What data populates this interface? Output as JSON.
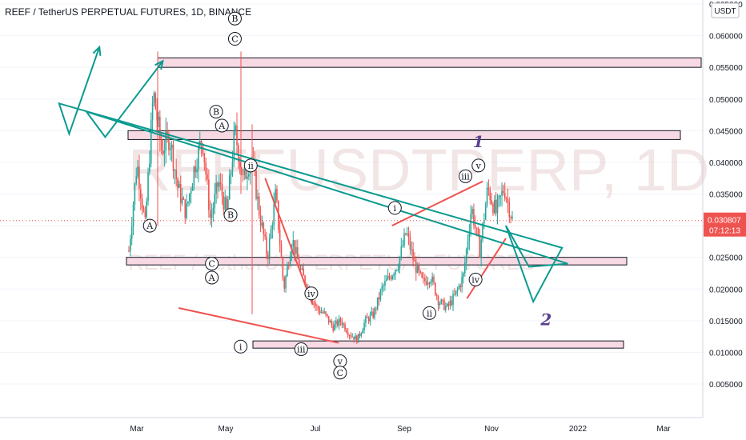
{
  "title": "REEF / TetherUS PERPETUAL FUTURES, 1D, BINANCE",
  "watermark": {
    "big": "REEFUSDTPERP, 1D",
    "small": "REEF / TetherUS PERPETUAL FUTURES"
  },
  "colors": {
    "up": "#26a69a",
    "down": "#ef5350",
    "zone_fill": "#f7d9e3",
    "wave_red": "#ef5350",
    "projection": "#0b9a8f",
    "degree_label": "#5b3f8e",
    "price_badge": "#ef5350"
  },
  "chart_data": {
    "type": "candlestick",
    "currency": "USDT",
    "y_ticks": [
      "0.065000",
      "0.060000",
      "0.055000",
      "0.050000",
      "0.045000",
      "0.040000",
      "0.035000",
      "0.030000",
      "0.025000",
      "0.020000",
      "0.015000",
      "0.010000",
      "0.005000"
    ],
    "ylim": [
      0.0,
      0.065
    ],
    "x_ticks": [
      "Mar",
      "May",
      "Jul",
      "Sep",
      "Nov",
      "2022",
      "Mar"
    ],
    "last_price": "0.030807",
    "countdown": "07:12:13",
    "zones": [
      {
        "from": "late Feb",
        "to": "Mar 2022",
        "low": 0.055,
        "high": 0.0565
      },
      {
        "from": "late Feb",
        "to": "Mar 2022",
        "low": 0.0436,
        "high": 0.045
      },
      {
        "from": "late Feb",
        "to": "Jan 2022",
        "low": 0.0238,
        "high": 0.025
      },
      {
        "from": "May",
        "to": "Jan 2022",
        "low": 0.0107,
        "high": 0.0118
      }
    ],
    "candles_ohlc_approx": {
      "period": "Feb 2021 – Nov 2021, 1D",
      "path": [
        0.026,
        0.04,
        0.03,
        0.051,
        0.042,
        0.044,
        0.036,
        0.032,
        0.039,
        0.044,
        0.031,
        0.037,
        0.032,
        0.045,
        0.037,
        0.041,
        0.032,
        0.025,
        0.035,
        0.02,
        0.028,
        0.023,
        0.02,
        0.017,
        0.016,
        0.014,
        0.015,
        0.013,
        0.012,
        0.015,
        0.016,
        0.02,
        0.022,
        0.024,
        0.029,
        0.024,
        0.021,
        0.022,
        0.018,
        0.017,
        0.019,
        0.022,
        0.033,
        0.026,
        0.036,
        0.032,
        0.036,
        0.031
      ]
    },
    "wave_labels": [
      {
        "text": "B",
        "at": "Apr 25",
        "price": 0.048
      },
      {
        "text": "A",
        "at": "Apr 29",
        "price": 0.0458
      },
      {
        "text": "B",
        "at": "May 8",
        "price": 0.0627
      },
      {
        "text": "C",
        "at": "May 8",
        "price": 0.0595
      },
      {
        "text": "A",
        "at": "Mar 10",
        "price": 0.03
      },
      {
        "text": "B",
        "at": "May 5",
        "price": 0.0317
      },
      {
        "text": "ii",
        "at": "May 19",
        "price": 0.0395
      },
      {
        "text": "C",
        "at": "Apr 22",
        "price": 0.024
      },
      {
        "text": "A",
        "at": "Apr 22",
        "price": 0.0218
      },
      {
        "text": "iv",
        "at": "Jun 30",
        "price": 0.0193
      },
      {
        "text": "i",
        "at": "May 12",
        "price": 0.0109
      },
      {
        "text": "iii",
        "at": "Jun 23",
        "price": 0.0105
      },
      {
        "text": "v",
        "at": "Jul 20",
        "price": 0.0086
      },
      {
        "text": "C",
        "at": "Jul 20",
        "price": 0.0068
      },
      {
        "text": "i",
        "at": "Aug 27",
        "price": 0.0328
      },
      {
        "text": "ii",
        "at": "Sep 20",
        "price": 0.0162
      },
      {
        "text": "iii",
        "at": "Oct 15",
        "price": 0.0378
      },
      {
        "text": "v",
        "at": "Oct 24",
        "price": 0.0395
      },
      {
        "text": "iv",
        "at": "Oct 22",
        "price": 0.0215
      }
    ],
    "degree_labels": [
      {
        "text": "1",
        "at": "Oct 24",
        "price": 0.0424
      },
      {
        "text": "2",
        "at": "Dec 10",
        "price": 0.0143
      }
    ],
    "wave_lines": [
      {
        "from": [
          "Mar 30",
          0.017
        ],
        "to": [
          "Jul 19",
          0.0115
        ]
      },
      {
        "from": [
          "May 29",
          0.0375
        ],
        "to": [
          "Jul 1",
          0.0175
        ]
      },
      {
        "from": [
          "Aug 25",
          0.03
        ],
        "to": [
          "Oct 27",
          0.037
        ]
      },
      {
        "from": [
          "Oct 16",
          0.0185
        ],
        "to": [
          "Nov 12",
          0.028
        ]
      }
    ],
    "projection": {
      "path_a": [
        [
          "Nov 12",
          0.03
        ],
        [
          "Dec 1",
          0.018
        ],
        [
          "Dec 21",
          0.0265
        ],
        [
          "Jan 6",
          0.0493
        ],
        [
          "Jan 13",
          0.0445
        ],
        [
          "Feb 3",
          0.0582
        ]
      ],
      "path_b": [
        [
          "Nov 12",
          0.03
        ],
        [
          "Nov 28",
          0.0235
        ],
        [
          "Dec 25",
          0.024
        ],
        [
          "Jan 25",
          0.048
        ],
        [
          "Feb 7",
          0.044
        ],
        [
          "Mar 19",
          0.056
        ]
      ]
    }
  }
}
